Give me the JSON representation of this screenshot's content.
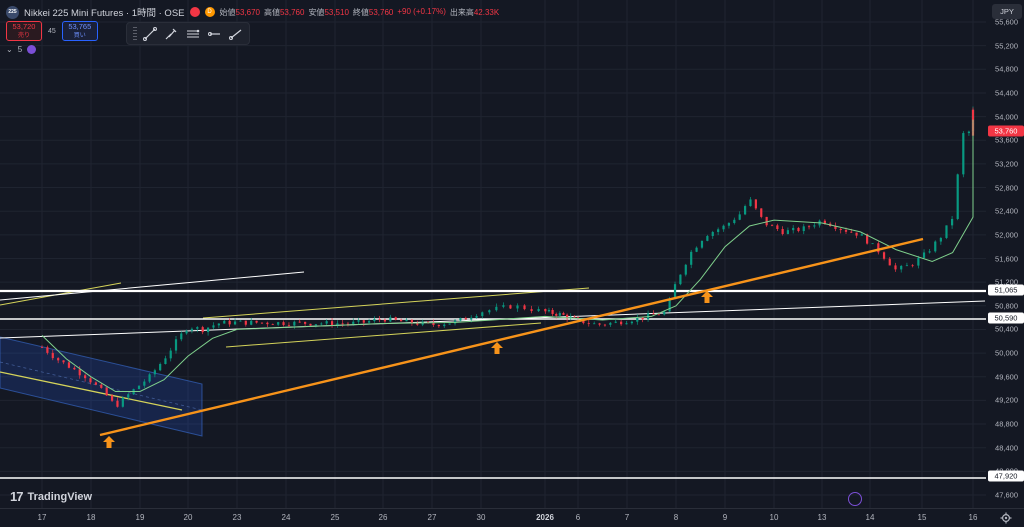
{
  "header": {
    "symbol_logo": "225",
    "title": "Nikkei 225 Mini Futures · 1時間 · OSE",
    "badge_d": "D",
    "ohlc": [
      {
        "k": "始値",
        "v": "53,670"
      },
      {
        "k": "高値",
        "v": "53,760"
      },
      {
        "k": "安値",
        "v": "53,510"
      },
      {
        "k": "終値",
        "v": "53,760"
      },
      {
        "k": "",
        "v": "+90 (+0.17%)"
      },
      {
        "k": "出来高",
        "v": "42.33K"
      }
    ]
  },
  "trade": {
    "sell_price": "53,720",
    "sell_label": "売り",
    "spread": "45",
    "buy_price": "53,765",
    "buy_label": "買い"
  },
  "indicator_row": {
    "chevron": "⌄",
    "count": "5"
  },
  "toolbar_icons": [
    "trend-line-icon",
    "brush-icon",
    "parallel-channel-icon",
    "horizontal-ray-icon",
    "ray-icon"
  ],
  "price_axis": {
    "currency": "JPY",
    "ticks": [
      "55,600",
      "55,200",
      "54,800",
      "54,400",
      "54,000",
      "53,600",
      "53,200",
      "52,800",
      "52,400",
      "52,000",
      "51,600",
      "51,200",
      "50,800",
      "50,400",
      "50,000",
      "49,600",
      "49,200",
      "48,800",
      "48,400",
      "48,000",
      "47,600"
    ],
    "labels": [
      {
        "text": "53,760",
        "kind": "red"
      },
      {
        "text": "51,065",
        "kind": "white"
      },
      {
        "text": "50,590",
        "kind": "white"
      },
      {
        "text": "47,920",
        "kind": "white"
      }
    ]
  },
  "time_axis": {
    "ticks": [
      {
        "t": "17"
      },
      {
        "t": "18"
      },
      {
        "t": "19"
      },
      {
        "t": "20"
      },
      {
        "t": "23"
      },
      {
        "t": "24"
      },
      {
        "t": "25"
      },
      {
        "t": "26"
      },
      {
        "t": "27"
      },
      {
        "t": "30"
      },
      {
        "t": "2026",
        "bold": true
      },
      {
        "t": "6"
      },
      {
        "t": "7"
      },
      {
        "t": "8"
      },
      {
        "t": "9"
      },
      {
        "t": "10"
      },
      {
        "t": "13"
      },
      {
        "t": "14"
      },
      {
        "t": "15"
      },
      {
        "t": "16"
      }
    ]
  },
  "brand": {
    "mark": "17",
    "name": "TradingView"
  },
  "chart_data": {
    "type": "candlestick",
    "instrument": "Nikkei 225 Mini Futures",
    "interval": "1時間",
    "currency": "JPY",
    "ylim": [
      47600,
      55700
    ],
    "x": [
      "17",
      "18",
      "19",
      "20",
      "23",
      "24",
      "25",
      "26",
      "27",
      "30",
      "2026",
      "6",
      "7",
      "8",
      "9",
      "10",
      "13",
      "14",
      "15",
      "16"
    ],
    "close_path": [
      [
        17.0,
        50100
      ],
      [
        17.3,
        49900
      ],
      [
        17.6,
        49750
      ],
      [
        17.9,
        49600
      ],
      [
        18.1,
        49450
      ],
      [
        18.3,
        49300
      ],
      [
        18.5,
        49100
      ],
      [
        18.7,
        49250
      ],
      [
        18.9,
        49400
      ],
      [
        19.2,
        49600
      ],
      [
        19.5,
        49900
      ],
      [
        19.8,
        50250
      ],
      [
        20.0,
        50450
      ],
      [
        20.3,
        50400
      ],
      [
        20.6,
        50500
      ],
      [
        20.9,
        50520
      ],
      [
        23.3,
        50500
      ],
      [
        23.6,
        50520
      ],
      [
        24.0,
        50580
      ],
      [
        24.5,
        50520
      ],
      [
        25.0,
        50480
      ],
      [
        25.5,
        50530
      ],
      [
        26.0,
        50700
      ],
      [
        26.5,
        50800
      ],
      [
        27.0,
        50700
      ],
      [
        27.5,
        50650
      ],
      [
        28.0,
        50550
      ],
      [
        28.4,
        50480
      ],
      [
        28.8,
        50520
      ],
      [
        29.3,
        50600
      ],
      [
        29.8,
        50700
      ],
      [
        30.0,
        51200
      ],
      [
        30.3,
        51700
      ],
      [
        30.6,
        52000
      ],
      [
        31.0,
        52150
      ],
      [
        31.3,
        52350
      ],
      [
        31.5,
        52600
      ],
      [
        31.8,
        52200
      ],
      [
        32.2,
        52050
      ],
      [
        32.6,
        52100
      ],
      [
        33.0,
        52250
      ],
      [
        33.4,
        52100
      ],
      [
        33.8,
        52000
      ],
      [
        34.2,
        51700
      ],
      [
        34.5,
        51400
      ],
      [
        34.8,
        51500
      ],
      [
        35.1,
        51700
      ],
      [
        35.4,
        52000
      ],
      [
        35.6,
        52300
      ],
      [
        35.8,
        53700
      ],
      [
        36.1,
        53800
      ],
      [
        36.4,
        53900
      ],
      [
        36.8,
        54000
      ],
      [
        37.1,
        54050
      ],
      [
        37.3,
        54100
      ],
      [
        37.5,
        53800
      ],
      [
        37.7,
        53650
      ]
    ],
    "ema_path": [
      [
        17.0,
        50300
      ],
      [
        17.5,
        49900
      ],
      [
        18.0,
        49600
      ],
      [
        18.5,
        49350
      ],
      [
        19.0,
        49350
      ],
      [
        19.5,
        49550
      ],
      [
        20.0,
        49950
      ],
      [
        20.5,
        50250
      ],
      [
        21.0,
        50400
      ],
      [
        24.0,
        50500
      ],
      [
        25.5,
        50520
      ],
      [
        27.0,
        50620
      ],
      [
        28.5,
        50560
      ],
      [
        29.5,
        50620
      ],
      [
        30.0,
        50800
      ],
      [
        30.5,
        51250
      ],
      [
        31.0,
        51800
      ],
      [
        31.5,
        52150
      ],
      [
        32.0,
        52250
      ],
      [
        33.0,
        52200
      ],
      [
        33.8,
        52050
      ],
      [
        34.5,
        51750
      ],
      [
        35.2,
        51550
      ],
      [
        35.6,
        51700
      ],
      [
        36.0,
        52300
      ],
      [
        36.4,
        53000
      ],
      [
        36.8,
        53500
      ],
      [
        37.2,
        53800
      ],
      [
        37.5,
        53950
      ],
      [
        37.7,
        53900
      ]
    ],
    "horizontal_levels": [
      51065,
      50590,
      47920
    ],
    "last_price": 53760
  }
}
